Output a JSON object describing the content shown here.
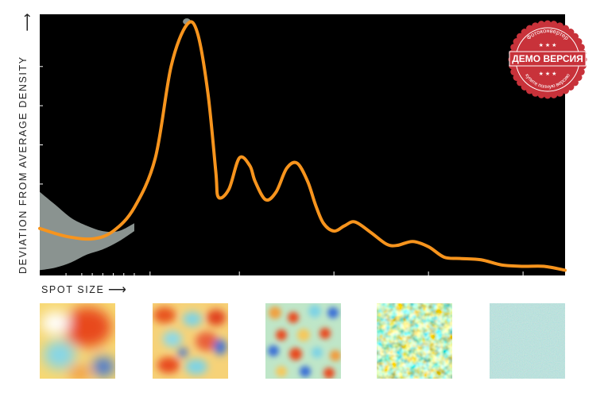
{
  "chart_data": {
    "type": "line",
    "ylabel": "DEVIATION FROM AVERAGE DENSITY",
    "xlabel": "SPOT SIZE",
    "xlim": [
      0,
      1
    ],
    "ylim": [
      0,
      1
    ],
    "grid": false,
    "series": [
      {
        "x": [
          0.0,
          0.05,
          0.1,
          0.14,
          0.18,
          0.22,
          0.25,
          0.28,
          0.3,
          0.32,
          0.335,
          0.34,
          0.36,
          0.38,
          0.4,
          0.41,
          0.43,
          0.45,
          0.47,
          0.49,
          0.51,
          0.525,
          0.54,
          0.56,
          0.58,
          0.6,
          0.63,
          0.66,
          0.68,
          0.71,
          0.74,
          0.77,
          0.8,
          0.84,
          0.88,
          0.92,
          0.96,
          1.0
        ],
        "y": [
          0.18,
          0.15,
          0.14,
          0.17,
          0.26,
          0.45,
          0.8,
          0.96,
          0.93,
          0.7,
          0.4,
          0.3,
          0.33,
          0.45,
          0.42,
          0.36,
          0.29,
          0.32,
          0.41,
          0.43,
          0.36,
          0.27,
          0.2,
          0.17,
          0.19,
          0.205,
          0.165,
          0.12,
          0.115,
          0.13,
          0.11,
          0.07,
          0.065,
          0.06,
          0.04,
          0.035,
          0.035,
          0.02
        ]
      }
    ],
    "uncertainty_band": {
      "x": [
        0.0,
        0.03,
        0.06,
        0.09,
        0.12,
        0.15,
        0.18
      ],
      "upper": [
        0.32,
        0.27,
        0.22,
        0.19,
        0.17,
        0.17,
        0.2
      ],
      "lower": [
        0.02,
        0.03,
        0.05,
        0.08,
        0.1,
        0.13,
        0.17
      ]
    },
    "colors": {
      "plot_bg": "#000000",
      "line": "#f7941d",
      "band": "#8a9390"
    }
  },
  "thumbnails": [
    {
      "name": "large-spots"
    },
    {
      "name": "medium-large-spots"
    },
    {
      "name": "medium-spots"
    },
    {
      "name": "small-spots"
    },
    {
      "name": "noise"
    }
  ],
  "watermark": {
    "main": "ДЕМО ВЕРСИЯ",
    "top": "Фотоконвертер",
    "bottom": "купите полную версию"
  }
}
